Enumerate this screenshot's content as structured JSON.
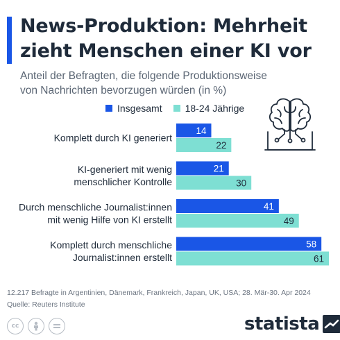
{
  "header": {
    "title": "News-Produktion: Mehrheit zieht Menschen einer KI vor",
    "subtitle": "Anteil der Befragten, die folgende Produktionsweise von Nachrichten bevorzugen würden (in %)"
  },
  "colors": {
    "accent": "#1a56e6",
    "series_insgesamt": "#1a56e6",
    "series_jung": "#7edfd3",
    "text": "#1f2b3a"
  },
  "icons": {
    "header_icon": "brain-circuit-icon",
    "license": [
      "cc-icon",
      "by-icon",
      "nd-icon"
    ],
    "logo": "statista-logo-icon"
  },
  "chart_data": {
    "type": "bar",
    "orientation": "horizontal",
    "categories": [
      "Komplett durch KI generiert",
      "KI-generiert mit wenig menschlicher Kontrolle",
      "Durch menschliche Journalist:innen mit wenig Hilfe von KI erstellt",
      "Komplett durch menschliche Journalist:innen erstellt"
    ],
    "category_lines": [
      [
        "Komplett durch KI generiert"
      ],
      [
        "KI-generiert mit wenig",
        "menschlicher Kontrolle"
      ],
      [
        "Durch menschliche Journalist:innen",
        "mit wenig Hilfe von KI erstellt"
      ],
      [
        "Komplett durch menschliche",
        "Journalist:innen erstellt"
      ]
    ],
    "series": [
      {
        "name": "Insgesamt",
        "values": [
          14,
          21,
          41,
          58
        ]
      },
      {
        "name": "18-24 Jährige",
        "values": [
          22,
          30,
          49,
          61
        ]
      }
    ],
    "xlim": [
      0,
      61
    ],
    "grid": false,
    "data_labels": true,
    "legend_position": "top"
  },
  "footer": {
    "note": "12.217 Befragte in Argentinien, Dänemark, Frankreich, Japan, UK, USA; 28. Mär-30. Apr 2024",
    "source": "Quelle: Reuters Institute",
    "logo_text": "statista"
  }
}
